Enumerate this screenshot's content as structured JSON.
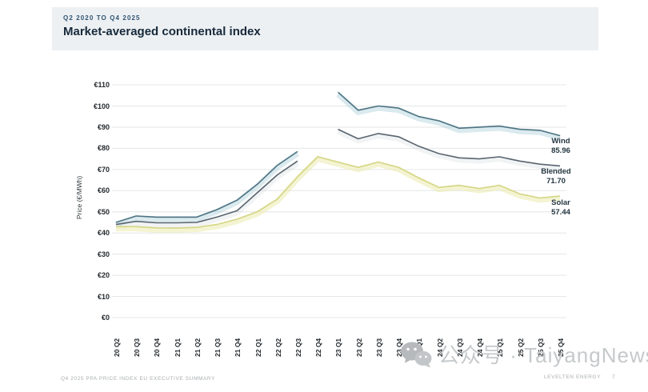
{
  "header": {
    "eyebrow": "Q2 2020 TO Q4 2025",
    "title": "Market-averaged continental index"
  },
  "chart_data": {
    "type": "line",
    "title": "Market-averaged continental index",
    "xlabel": "",
    "ylabel": "Price (€/MWh)",
    "ylim": [
      0,
      110
    ],
    "ytick_step": 10,
    "yticks": [
      "€0",
      "€10",
      "€20",
      "€30",
      "€40",
      "€50",
      "€60",
      "€70",
      "€80",
      "€90",
      "€100",
      "€110"
    ],
    "grid": true,
    "legend_position": "end-of-line-labels",
    "categories": [
      "20 Q2",
      "20 Q3",
      "20 Q4",
      "21 Q1",
      "21 Q2",
      "21 Q3",
      "21 Q4",
      "22 Q1",
      "22 Q2",
      "22 Q3",
      "22 Q4",
      "23 Q1",
      "23 Q2",
      "23 Q3",
      "23 Q4",
      "24 Q1",
      "24 Q2",
      "24 Q3",
      "24 Q4",
      "25 Q1",
      "25 Q2",
      "25 Q3",
      "25 Q4"
    ],
    "series": [
      {
        "name": "Wind",
        "end_label": "85.96",
        "color": "#4d7382",
        "glow": "rgba(173,209,218,0.45)",
        "values": [
          45,
          48,
          47.5,
          47.5,
          47.5,
          51,
          55.5,
          63,
          72,
          78.5,
          null,
          106.5,
          98,
          100,
          99,
          95,
          93,
          89.5,
          90,
          90.5,
          89,
          88.5,
          85.96
        ]
      },
      {
        "name": "Blended",
        "end_label": "71.70",
        "color": "#5b6670",
        "glow": "rgba(200,206,210,0.25)",
        "values": [
          44,
          45.5,
          44.8,
          44.8,
          45,
          47.5,
          50.5,
          59,
          67.5,
          74,
          null,
          89,
          84.5,
          87,
          85.5,
          81,
          77.5,
          75.5,
          75,
          76,
          74,
          72.5,
          71.7
        ]
      },
      {
        "name": "Solar",
        "end_label": "57.44",
        "color": "#d5d687",
        "glow": "rgba(235,235,175,0.55)",
        "values": [
          43,
          43,
          42.4,
          42.3,
          42.6,
          44,
          46.5,
          50,
          56,
          66.5,
          76,
          73.5,
          71,
          73.5,
          71,
          66,
          61.5,
          62.5,
          61,
          62.5,
          58.5,
          56.5,
          57.44
        ]
      }
    ]
  },
  "footer": {
    "left": "Q4 2025 PPA PRICE INDEX EU EXECUTIVE SUMMARY",
    "brand": "LEVELTEN ENERGY",
    "page": "7"
  },
  "watermark": {
    "text": "公众号 · TaiyangNews"
  }
}
